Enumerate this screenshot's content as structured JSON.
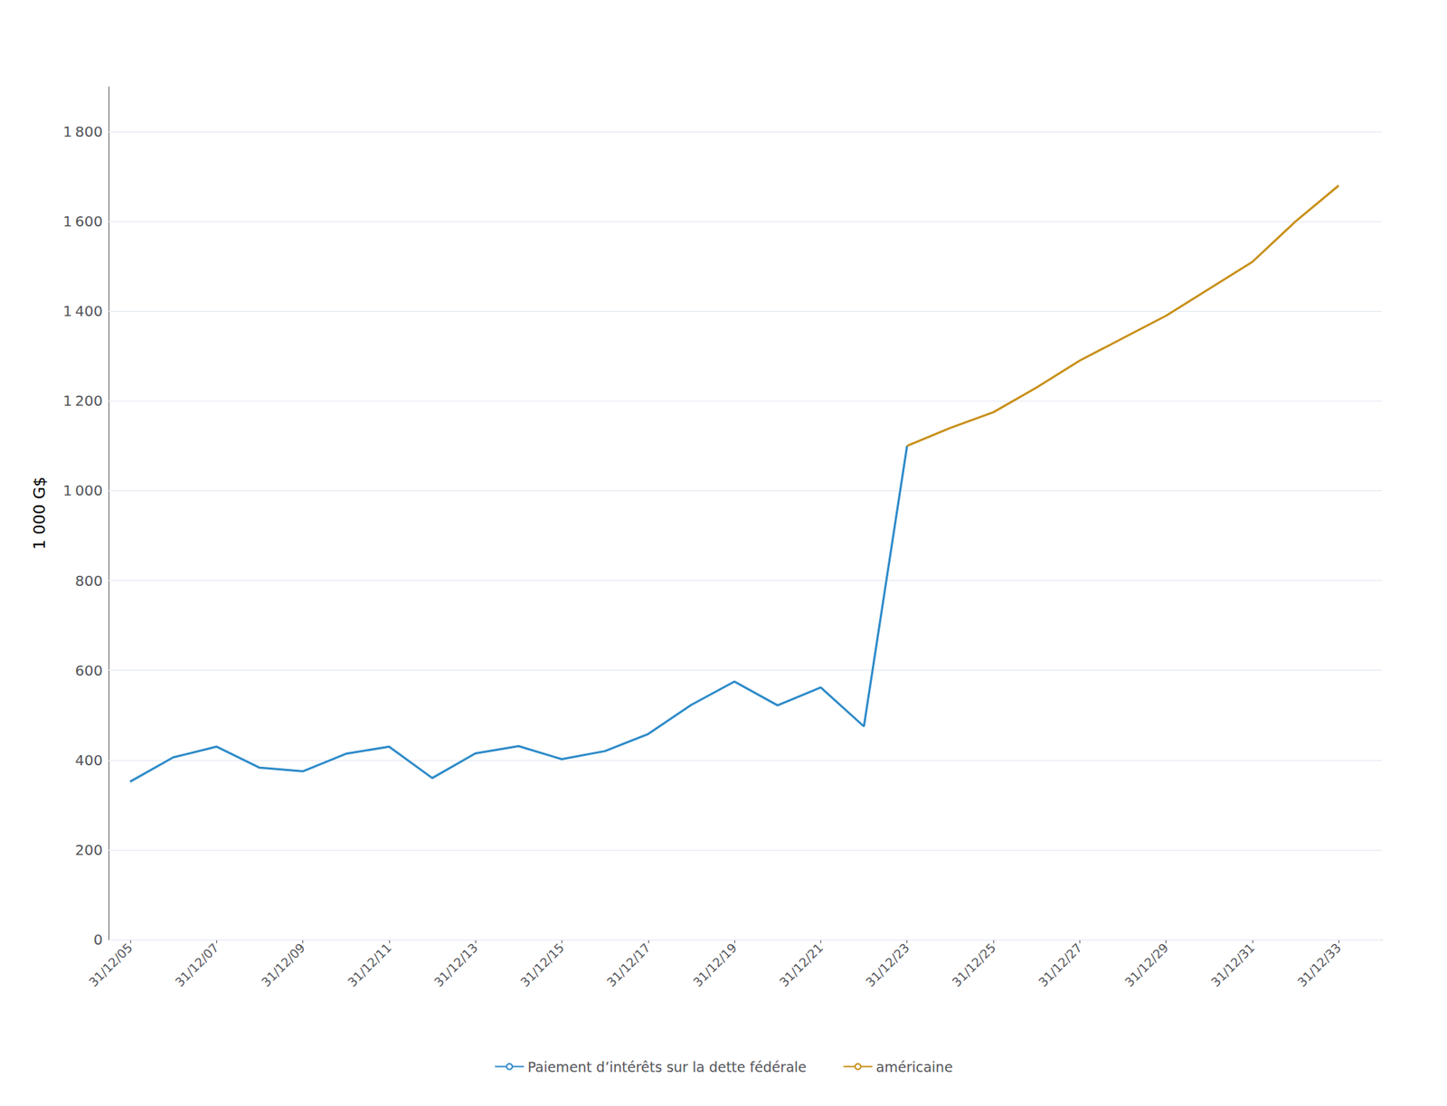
{
  "chart_data": {
    "type": "line",
    "ylabel": "1 000 G$",
    "series": [
      {
        "name": "Paiement d’intérêts sur la dette fédérale",
        "color": "#2e8bc9",
        "x": [
          2005,
          2006,
          2007,
          2008,
          2009,
          2010,
          2011,
          2012,
          2013,
          2014,
          2015,
          2016,
          2017,
          2018,
          2019,
          2020,
          2021,
          2022,
          2023
        ],
        "values": [
          352,
          406,
          430,
          383,
          375,
          414,
          430,
          360,
          415,
          431,
          402,
          420,
          458,
          523,
          575,
          522,
          562,
          475,
          1100
        ]
      },
      {
        "name": "américaine",
        "color": "#c8901a",
        "x": [
          2023,
          2024,
          2025,
          2026,
          2027,
          2028,
          2029,
          2030,
          2031,
          2032,
          2033
        ],
        "values": [
          1100,
          1140,
          1175,
          1230,
          1290,
          1340,
          1390,
          1450,
          1510,
          1600,
          1680
        ]
      }
    ],
    "xlim": [
      2004.5,
      2034.0
    ],
    "xticks": [
      {
        "value": 2005,
        "label": "31/12/05"
      },
      {
        "value": 2007,
        "label": "31/12/07"
      },
      {
        "value": 2009,
        "label": "31/12/09"
      },
      {
        "value": 2011,
        "label": "31/12/11"
      },
      {
        "value": 2013,
        "label": "31/12/13"
      },
      {
        "value": 2015,
        "label": "31/12/15"
      },
      {
        "value": 2017,
        "label": "31/12/17"
      },
      {
        "value": 2019,
        "label": "31/12/19"
      },
      {
        "value": 2021,
        "label": "31/12/21"
      },
      {
        "value": 2023,
        "label": "31/12/23"
      },
      {
        "value": 2025,
        "label": "31/12/25"
      },
      {
        "value": 2027,
        "label": "31/12/27"
      },
      {
        "value": 2029,
        "label": "31/12/29"
      },
      {
        "value": 2031,
        "label": "31/12/31"
      },
      {
        "value": 2033,
        "label": "31/12/33"
      }
    ],
    "ylim": [
      0,
      1900
    ],
    "yticks": [
      0,
      200,
      400,
      600,
      800,
      {
        "value": 1000,
        "label": "1 000"
      },
      {
        "value": 1200,
        "label": "1 200"
      },
      {
        "value": 1400,
        "label": "1 400"
      },
      {
        "value": 1600,
        "label": "1 600"
      },
      {
        "value": 1800,
        "label": "1 800"
      }
    ],
    "grid": "y",
    "legend": "bottom"
  }
}
